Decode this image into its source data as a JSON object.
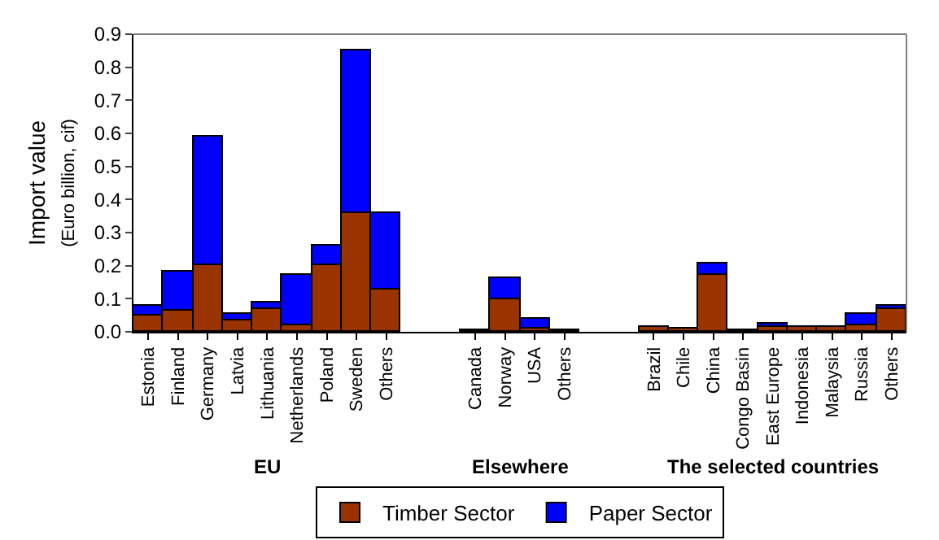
{
  "chart_data": {
    "type": "bar",
    "stacked": true,
    "ylabel": "Import value\n(Euro billion, cif)",
    "categories": [
      "Estonia",
      "Finland",
      "Germany",
      "Latvia",
      "Lithuania",
      "Netherlands",
      "Poland",
      "Sweden",
      "Others",
      null,
      null,
      "Canada",
      "Norway",
      "USA",
      "Others",
      null,
      null,
      "Brazil",
      "Chile",
      "China",
      "Congo Basin",
      "East Europe",
      "Indonesia",
      "Malaysia",
      "Russia",
      "Others"
    ],
    "series": [
      {
        "name": "Timber Sector",
        "color": "#993300",
        "values": [
          0.048,
          0.065,
          0.2,
          0.033,
          0.07,
          0.02,
          0.2,
          0.36,
          0.13,
          null,
          null,
          0.004,
          0.1,
          0.01,
          0.004,
          null,
          null,
          0.015,
          0.008,
          0.173,
          0.003,
          0.015,
          0.015,
          0.015,
          0.019,
          0.067
        ]
      },
      {
        "name": "Paper Sector",
        "color": "#0000ff",
        "values": [
          0.032,
          0.115,
          0.39,
          0.022,
          0.02,
          0.15,
          0.06,
          0.49,
          0.23,
          null,
          null,
          null,
          0.063,
          0.028,
          null,
          null,
          null,
          null,
          null,
          0.035,
          null,
          0.011,
          null,
          null,
          0.035,
          0.01
        ]
      }
    ],
    "ylim": [
      0,
      0.9
    ],
    "yticks": [
      "0.0",
      0.1,
      0.2,
      0.3,
      0.4,
      0.5,
      0.6,
      0.7,
      0.8,
      0.9
    ],
    "annotations": [
      "EU",
      "Elsewhere",
      "The selected countries"
    ],
    "legend": "bottom"
  }
}
